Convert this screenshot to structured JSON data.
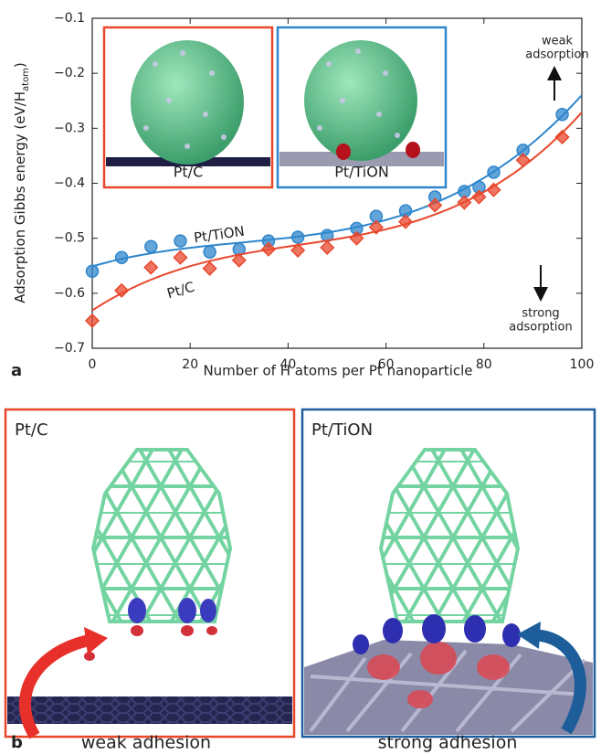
{
  "chart_data": {
    "type": "scatter",
    "panel_label": "a",
    "xlabel": "Number of H atoms per Pt nanoparticle",
    "ylabel": {
      "main": "Adsorption Gibbs energy (eV/H",
      "sub": "atom",
      "end": ")"
    },
    "xlim": [
      0,
      100
    ],
    "xticks": [
      0,
      20,
      40,
      60,
      80,
      100
    ],
    "ylim": [
      -0.7,
      -0.1
    ],
    "yticks": [
      {
        "value": -0.7,
        "label": "−0.7"
      },
      {
        "value": -0.6,
        "label": "−0.6"
      },
      {
        "value": -0.5,
        "label": "−0.5"
      },
      {
        "value": -0.4,
        "label": "−0.4"
      },
      {
        "value": -0.3,
        "label": "−0.3"
      },
      {
        "value": -0.2,
        "label": "−0.2"
      },
      {
        "value": -0.1,
        "label": "−0.1"
      }
    ],
    "fit_curves": true,
    "series": [
      {
        "name": "Pt/TiON",
        "color": "#2f86cc",
        "marker": "circle",
        "x": [
          0,
          6,
          12,
          18,
          24,
          30,
          36,
          42,
          48,
          54,
          58,
          64,
          70,
          76,
          79,
          82,
          88,
          96
        ],
        "values": [
          -0.56,
          -0.535,
          -0.515,
          -0.505,
          -0.525,
          -0.52,
          -0.505,
          -0.498,
          -0.495,
          -0.482,
          -0.46,
          -0.45,
          -0.425,
          -0.415,
          -0.407,
          -0.38,
          -0.34,
          -0.275
        ]
      },
      {
        "name": "Pt/C",
        "color": "#e8472c",
        "marker": "diamond",
        "x": [
          0,
          6,
          12,
          18,
          24,
          30,
          36,
          42,
          48,
          54,
          58,
          64,
          70,
          76,
          79,
          82,
          88,
          96
        ],
        "values": [
          -0.65,
          -0.595,
          -0.553,
          -0.535,
          -0.555,
          -0.54,
          -0.52,
          -0.522,
          -0.517,
          -0.5,
          -0.48,
          -0.47,
          -0.44,
          -0.435,
          -0.425,
          -0.412,
          -0.358,
          -0.316
        ]
      }
    ],
    "insets": [
      {
        "label": "Pt/C",
        "color": "#e8472c"
      },
      {
        "label": "Pt/TiON",
        "color": "#2f86cc"
      }
    ],
    "annotations": {
      "weak": [
        "weak",
        "adsorption"
      ],
      "strong": [
        "strong",
        "adsorption"
      ]
    }
  },
  "panel_b": {
    "label": "b",
    "left": {
      "title": "Pt/C",
      "caption": "weak adhesion"
    },
    "right": {
      "title": "Pt/TiON",
      "caption": "strong adhesion"
    }
  }
}
